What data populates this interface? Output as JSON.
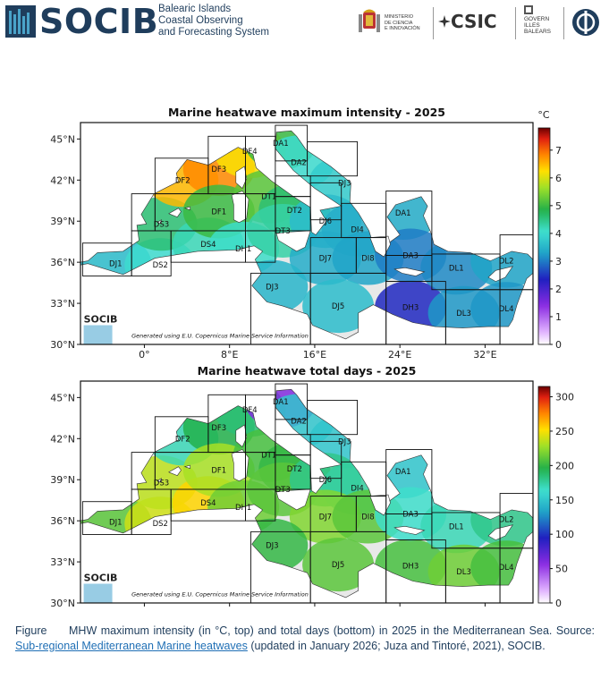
{
  "header": {
    "logo": "SOCIB",
    "logo_subtitle": [
      "Balearic Islands",
      "Coastal Observing",
      "and Forecasting System"
    ],
    "ministry": [
      "MINISTERIO",
      "DE CIENCIA",
      "E INNOVACIÓN"
    ],
    "csic": "CSIC",
    "govern": [
      "GOVERN",
      "ILLES",
      "BALEARS"
    ]
  },
  "chart_data": [
    {
      "type": "heatmap",
      "title": "Marine heatwave maximum intensity - 2025",
      "colorbar_unit": "°C",
      "colorbar_ticks": [
        0,
        1,
        2,
        3,
        4,
        5,
        6,
        7
      ],
      "colorbar_range": [
        0,
        7.8
      ],
      "xticks": [
        "0°",
        "8°E",
        "16°E",
        "24°E",
        "32°E"
      ],
      "xtick_values": [
        0,
        8,
        16,
        24,
        32
      ],
      "yticks": [
        "45°N",
        "42°N",
        "39°N",
        "36°N",
        "33°N",
        "30°N"
      ],
      "ytick_values": [
        45,
        42,
        39,
        36,
        33,
        30
      ],
      "xlim": [
        -6,
        36.5
      ],
      "ylim": [
        30,
        46.2
      ],
      "watermark": "SOCIB",
      "generated": "Generated using E.U. Copernicus Marine Service Information",
      "regions": [
        {
          "label": "DJ1",
          "lon": -2.7,
          "lat": 35.9,
          "value": 3.6
        },
        {
          "label": "DS2",
          "lon": 1.5,
          "lat": 35.8,
          "value": 4.0
        },
        {
          "label": "DS3",
          "lon": 1.6,
          "lat": 38.8,
          "value": 4.6
        },
        {
          "label": "DS4",
          "lon": 6.0,
          "lat": 37.3,
          "value": 4.2
        },
        {
          "label": "DF2",
          "lon": 3.6,
          "lat": 42.0,
          "value": 6.5
        },
        {
          "label": "DF3",
          "lon": 7.0,
          "lat": 42.8,
          "value": 6.8
        },
        {
          "label": "DF4",
          "lon": 9.9,
          "lat": 44.1,
          "value": 6.2
        },
        {
          "label": "DF1",
          "lon": 7.0,
          "lat": 39.7,
          "value": 5.0
        },
        {
          "label": "DH1",
          "lon": 9.3,
          "lat": 37.0,
          "value": 4.1
        },
        {
          "label": "DT1",
          "lon": 11.7,
          "lat": 40.8,
          "value": 5.2
        },
        {
          "label": "DT2",
          "lon": 14.1,
          "lat": 39.8,
          "value": 4.6
        },
        {
          "label": "DT3",
          "lon": 13.0,
          "lat": 38.3,
          "value": 4.3
        },
        {
          "label": "DA1",
          "lon": 12.8,
          "lat": 44.7,
          "value": 5.0
        },
        {
          "label": "DA2",
          "lon": 14.5,
          "lat": 43.3,
          "value": 4.0
        },
        {
          "label": "DJ3",
          "lon": 18.8,
          "lat": 41.8,
          "value": 3.8
        },
        {
          "label": "DJ6",
          "lon": 17.0,
          "lat": 39.0,
          "value": 3.6
        },
        {
          "label": "DI4",
          "lon": 20.0,
          "lat": 38.4,
          "value": 3.4
        },
        {
          "label": "DJ7",
          "lon": 17.0,
          "lat": 36.3,
          "value": 3.4
        },
        {
          "label": "DI8",
          "lon": 21.0,
          "lat": 36.3,
          "value": 3.3
        },
        {
          "label": "DJ3",
          "lon": 12.0,
          "lat": 34.2,
          "value": 3.5
        },
        {
          "label": "DJ5",
          "lon": 18.2,
          "lat": 32.8,
          "value": 3.6
        },
        {
          "label": "DH3",
          "lon": 25.0,
          "lat": 32.7,
          "value": 2.4
        },
        {
          "label": "DA1",
          "lon": 24.3,
          "lat": 39.6,
          "value": 3.4
        },
        {
          "label": "DA3",
          "lon": 25.0,
          "lat": 36.5,
          "value": 3.0
        },
        {
          "label": "DL1",
          "lon": 29.3,
          "lat": 35.6,
          "value": 3.1
        },
        {
          "label": "DL2",
          "lon": 34.0,
          "lat": 36.1,
          "value": 3.3
        },
        {
          "label": "DL3",
          "lon": 30.0,
          "lat": 32.3,
          "value": 3.2
        },
        {
          "label": "DL4",
          "lon": 34.0,
          "lat": 32.6,
          "value": 3.2
        }
      ]
    },
    {
      "type": "heatmap",
      "title": "Marine heatwave total days - 2025",
      "colorbar_unit": "",
      "colorbar_ticks": [
        0,
        50,
        100,
        150,
        200,
        250,
        300
      ],
      "colorbar_range": [
        0,
        315
      ],
      "xticks": [
        "0°",
        "8°E",
        "16°E",
        "24°E",
        "32°E"
      ],
      "xtick_values": [
        0,
        8,
        16,
        24,
        32
      ],
      "yticks": [
        "45°N",
        "42°N",
        "39°N",
        "36°N",
        "33°N",
        "30°N"
      ],
      "ytick_values": [
        45,
        42,
        39,
        36,
        33,
        30
      ],
      "xlim": [
        -6,
        36.5
      ],
      "ylim": [
        30,
        46.2
      ],
      "watermark": "SOCIB",
      "generated": "Generated using E.U. Copernicus Marine Service Information",
      "regions": [
        {
          "label": "DJ1",
          "lon": -2.7,
          "lat": 35.9,
          "value": 210
        },
        {
          "label": "DS2",
          "lon": 1.5,
          "lat": 35.8,
          "value": 240
        },
        {
          "label": "DS3",
          "lon": 1.6,
          "lat": 38.8,
          "value": 235
        },
        {
          "label": "DS4",
          "lon": 6.0,
          "lat": 37.3,
          "value": 255
        },
        {
          "label": "DF2",
          "lon": 3.6,
          "lat": 42.0,
          "value": 170
        },
        {
          "label": "DF3",
          "lon": 7.0,
          "lat": 42.8,
          "value": 195
        },
        {
          "label": "DF4",
          "lon": 9.9,
          "lat": 44.1,
          "value": 185
        },
        {
          "label": "DF1",
          "lon": 7.0,
          "lat": 39.7,
          "value": 230
        },
        {
          "label": "DH1",
          "lon": 9.3,
          "lat": 37.0,
          "value": 215
        },
        {
          "label": "DT1",
          "lon": 11.7,
          "lat": 40.8,
          "value": 205
        },
        {
          "label": "DT2",
          "lon": 14.1,
          "lat": 39.8,
          "value": 200
        },
        {
          "label": "DT3",
          "lon": 13.0,
          "lat": 38.3,
          "value": 210
        },
        {
          "label": "DA1",
          "lon": 12.8,
          "lat": 44.7,
          "value": 60
        },
        {
          "label": "DA2",
          "lon": 14.5,
          "lat": 43.3,
          "value": 150
        },
        {
          "label": "DJ3",
          "lon": 18.8,
          "lat": 41.8,
          "value": 150
        },
        {
          "label": "DJ6",
          "lon": 17.0,
          "lat": 39.0,
          "value": 180
        },
        {
          "label": "DI4",
          "lon": 20.0,
          "lat": 38.4,
          "value": 175
        },
        {
          "label": "DJ7",
          "lon": 17.0,
          "lat": 36.3,
          "value": 220
        },
        {
          "label": "DI8",
          "lon": 21.0,
          "lat": 36.3,
          "value": 210
        },
        {
          "label": "DJ3",
          "lon": 12.0,
          "lat": 34.2,
          "value": 200
        },
        {
          "label": "DJ5",
          "lon": 18.2,
          "lat": 32.8,
          "value": 210
        },
        {
          "label": "DH3",
          "lon": 25.0,
          "lat": 32.7,
          "value": 205
        },
        {
          "label": "DA1",
          "lon": 24.3,
          "lat": 39.6,
          "value": 150
        },
        {
          "label": "DA3",
          "lon": 25.0,
          "lat": 36.5,
          "value": 165
        },
        {
          "label": "DL1",
          "lon": 29.3,
          "lat": 35.6,
          "value": 170
        },
        {
          "label": "DL2",
          "lon": 34.0,
          "lat": 36.1,
          "value": 180
        },
        {
          "label": "DL3",
          "lon": 30.0,
          "lat": 32.3,
          "value": 215
        },
        {
          "label": "DL4",
          "lon": 34.0,
          "lat": 32.6,
          "value": 205
        }
      ]
    }
  ],
  "caption": {
    "label": "Figure",
    "text1": "MHW maximum intensity (in °C, top) and total days (bottom) in 2025 in the Mediterranean Sea. Source: ",
    "link": "Sub-regional Mediterranean Marine heatwaves",
    "text2": " (updated in January 2026; Juza and Tintoré, 2021), SOCIB."
  },
  "colors": {
    "brand": "#1f3d5c",
    "link": "#1f6fb5",
    "land": "#ffffff",
    "nodata": "#e8e8e8"
  }
}
